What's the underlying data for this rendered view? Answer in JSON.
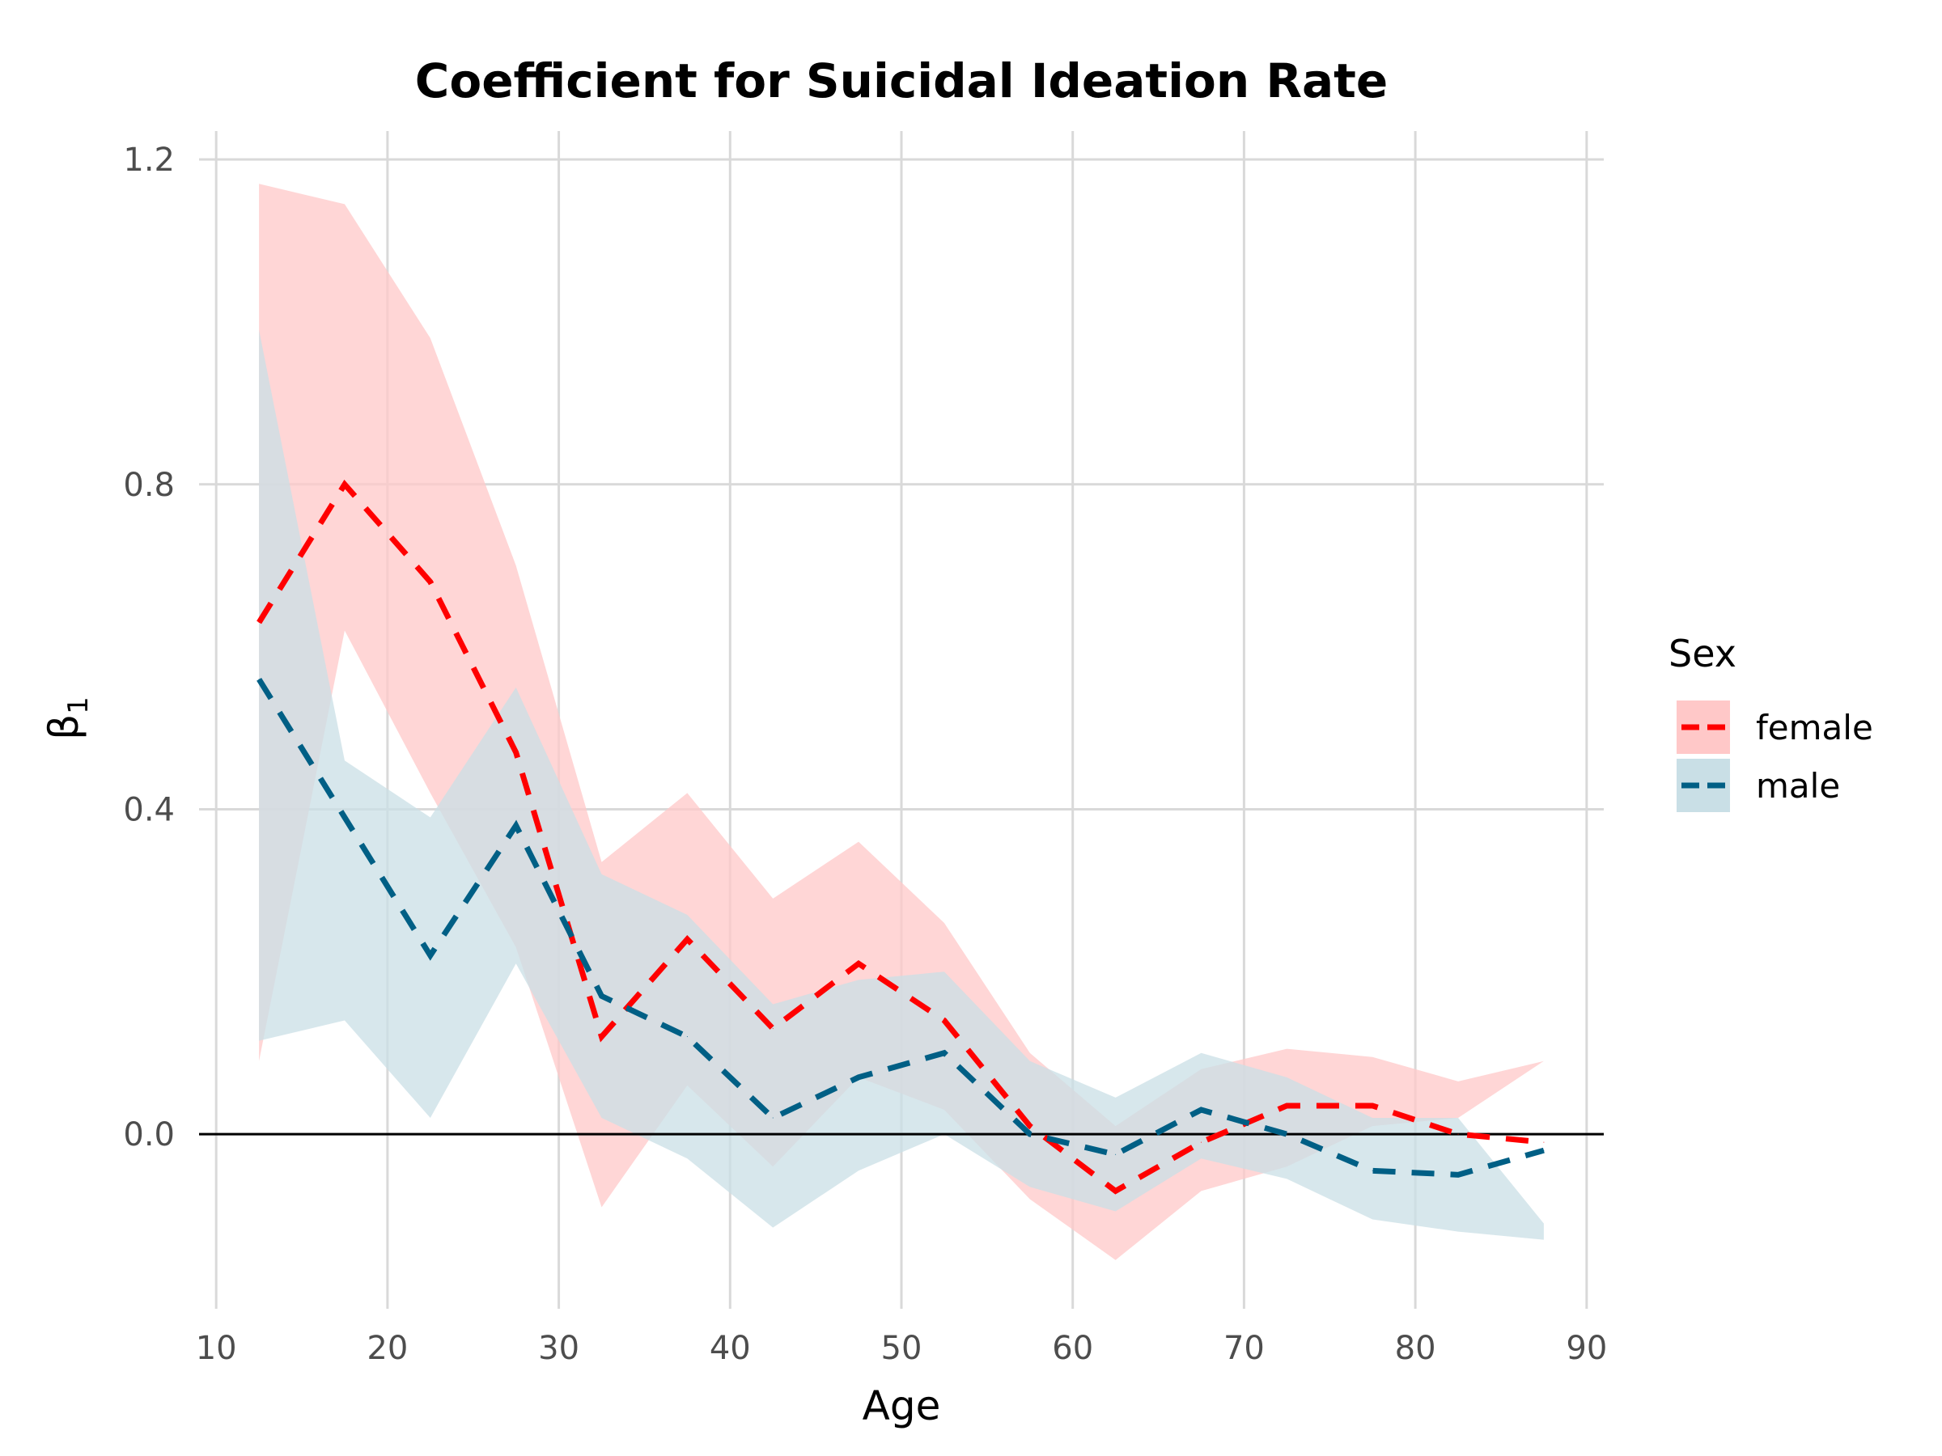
{
  "chart_data": {
    "type": "line",
    "title": "Coefficient for Suicidal Ideation Rate",
    "xlabel": "Age",
    "ylabel": "β",
    "ylabel_subscript": "1",
    "xlim": [
      9,
      91
    ],
    "ylim": [
      -0.215,
      1.235
    ],
    "x_ticks": [
      10,
      20,
      30,
      40,
      50,
      60,
      70,
      80,
      90
    ],
    "x_tick_labels": [
      "10",
      "20",
      "30",
      "40",
      "50",
      "60",
      "70",
      "80",
      "90"
    ],
    "y_ticks": [
      0.0,
      0.4,
      0.8,
      1.2
    ],
    "y_tick_labels": [
      "0.0",
      "0.4",
      "0.8",
      "1.2"
    ],
    "grid": true,
    "reference_line": 0,
    "x": [
      12.5,
      17.5,
      22.5,
      27.5,
      32.5,
      37.5,
      42.5,
      47.5,
      52.5,
      57.5,
      62.5,
      67.5,
      72.5,
      77.5,
      82.5,
      87.5
    ],
    "series": [
      {
        "name": "female",
        "color": "#ff0000",
        "ribbon_color": "#ffc8c8",
        "values": [
          0.63,
          0.8,
          0.68,
          0.47,
          0.12,
          0.24,
          0.13,
          0.21,
          0.14,
          0.01,
          -0.07,
          -0.01,
          0.035,
          0.035,
          0.0,
          -0.01
        ],
        "lower": [
          0.09,
          0.62,
          0.42,
          0.23,
          -0.09,
          0.06,
          -0.04,
          0.07,
          0.03,
          -0.08,
          -0.155,
          -0.07,
          -0.04,
          0.01,
          0.02,
          0.09
        ],
        "upper": [
          1.17,
          1.145,
          0.98,
          0.7,
          0.335,
          0.42,
          0.29,
          0.36,
          0.26,
          0.1,
          0.01,
          0.08,
          0.105,
          0.095,
          0.065,
          0.09
        ]
      },
      {
        "name": "male",
        "color": "#005f85",
        "ribbon_color": "#c9dfe6",
        "values": [
          0.56,
          0.39,
          0.22,
          0.38,
          0.17,
          0.12,
          0.02,
          0.07,
          0.1,
          0.0,
          -0.025,
          0.03,
          0.0,
          -0.045,
          -0.05,
          -0.02
        ],
        "lower": [
          0.115,
          0.14,
          0.02,
          0.21,
          0.02,
          -0.03,
          -0.115,
          -0.045,
          0.0,
          -0.065,
          -0.095,
          -0.03,
          -0.055,
          -0.105,
          -0.12,
          -0.13
        ],
        "upper": [
          0.99,
          0.46,
          0.39,
          0.55,
          0.32,
          0.27,
          0.16,
          0.19,
          0.2,
          0.09,
          0.045,
          0.1,
          0.07,
          0.02,
          0.02,
          -0.11
        ]
      }
    ],
    "legend": {
      "title": "Sex",
      "position": "right",
      "entries": [
        "female",
        "male"
      ]
    }
  }
}
